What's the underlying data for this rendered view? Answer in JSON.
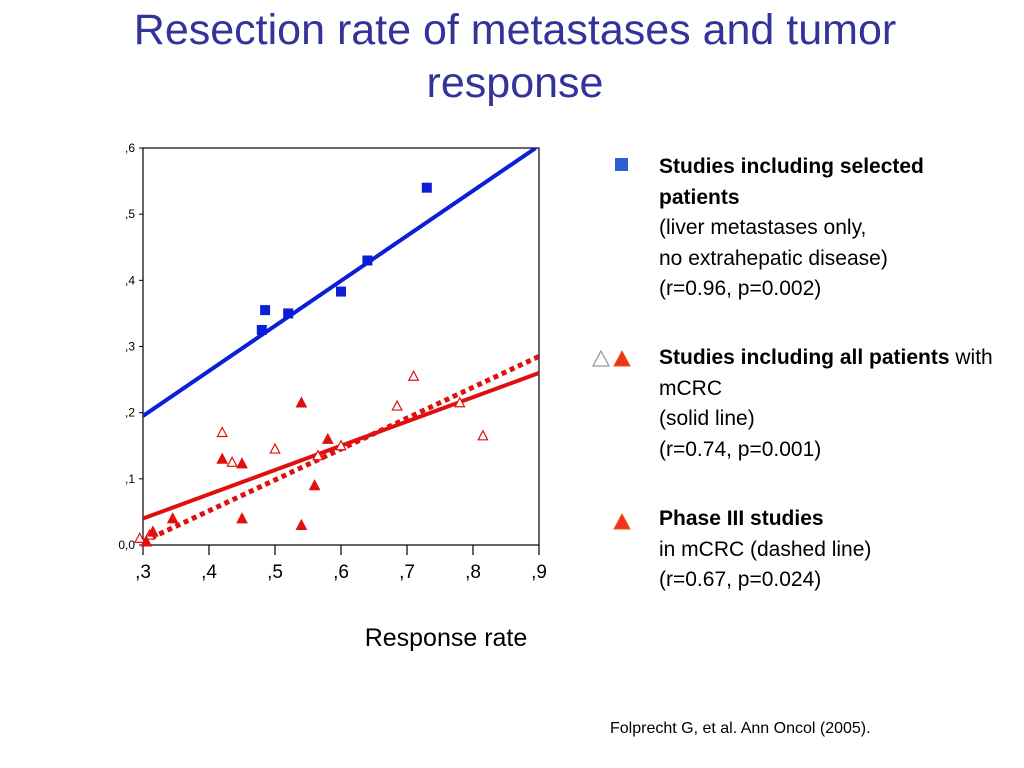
{
  "title": "Resection rate of metastases and tumor response",
  "legend": {
    "selected": {
      "bold": "Studies including selected patients",
      "lines": [
        "(liver metastases only,",
        "no extrahepatic disease)",
        "(r=0.96, p=0.002)"
      ]
    },
    "all": {
      "bold": "Studies including all patients",
      "rest": " with mCRC",
      "lines": [
        "(solid line)",
        "(r=0.74, p=0.001)"
      ]
    },
    "phase3": {
      "bold": "Phase III studies",
      "lines": [
        "in mCRC (dashed line)",
        "(r=0.67, p=0.024)"
      ]
    }
  },
  "citation": "Folprecht G, et al. Ann Oncol (2005).",
  "colors": {
    "title": "#33339a",
    "blue": "#0b1fd8",
    "red": "#e01010",
    "legend_square": "#2e5fd0",
    "legend_triangle": "#ee3322"
  },
  "chart_data": {
    "type": "scatter",
    "xlabel": "Response rate",
    "ylabel": "",
    "xlim": [
      0.3,
      0.9
    ],
    "ylim": [
      0.0,
      0.6
    ],
    "x_ticks": [
      ",3",
      ",4",
      ",5",
      ",6",
      ",7",
      ",8",
      ",9"
    ],
    "y_ticks": [
      "0,0",
      ",1",
      ",2",
      ",3",
      ",4",
      ",5",
      ",6"
    ],
    "series": [
      {
        "name": "Studies including selected patients",
        "marker": "filled-square",
        "color": "#0b1fd8",
        "points": [
          [
            0.48,
            0.325
          ],
          [
            0.485,
            0.355
          ],
          [
            0.52,
            0.35
          ],
          [
            0.6,
            0.383
          ],
          [
            0.64,
            0.43
          ],
          [
            0.73,
            0.54
          ]
        ]
      },
      {
        "name": "Studies including all patients",
        "marker": "open-triangle",
        "color": "#e01010",
        "points": [
          [
            0.42,
            0.17
          ],
          [
            0.435,
            0.125
          ],
          [
            0.5,
            0.145
          ],
          [
            0.565,
            0.135
          ],
          [
            0.6,
            0.15
          ],
          [
            0.685,
            0.21
          ],
          [
            0.71,
            0.255
          ],
          [
            0.78,
            0.215
          ],
          [
            0.815,
            0.165
          ],
          [
            0.295,
            0.01
          ],
          [
            0.31,
            0.015
          ]
        ]
      },
      {
        "name": "Phase III studies",
        "marker": "filled-triangle",
        "color": "#e01010",
        "points": [
          [
            0.305,
            0.005
          ],
          [
            0.315,
            0.02
          ],
          [
            0.345,
            0.04
          ],
          [
            0.42,
            0.13
          ],
          [
            0.45,
            0.123
          ],
          [
            0.45,
            0.04
          ],
          [
            0.54,
            0.215
          ],
          [
            0.54,
            0.03
          ],
          [
            0.56,
            0.09
          ],
          [
            0.58,
            0.16
          ]
        ]
      }
    ],
    "fit_lines": [
      {
        "color": "#0b1fd8",
        "style": "solid",
        "from": [
          0.3,
          0.195
        ],
        "to": [
          0.895,
          0.6
        ]
      },
      {
        "color": "#e01010",
        "style": "solid",
        "from": [
          0.3,
          0.04
        ],
        "to": [
          0.9,
          0.26
        ]
      },
      {
        "color": "#e01010",
        "style": "dotted",
        "from": [
          0.3,
          0.005
        ],
        "to": [
          0.9,
          0.285
        ]
      }
    ]
  }
}
